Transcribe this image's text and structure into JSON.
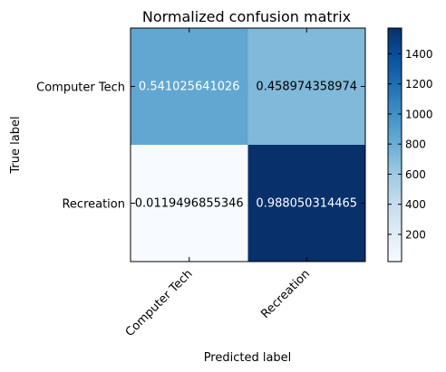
{
  "chart_data": {
    "type": "heatmap",
    "title": "Normalized confusion matrix",
    "xlabel": "Predicted label",
    "ylabel": "True label",
    "x_categories": [
      "Computer Tech",
      "Recreation"
    ],
    "y_categories": [
      "Computer Tech",
      "Recreation"
    ],
    "cell_labels": [
      [
        "0.541025641026",
        "0.458974358974"
      ],
      [
        "0.0119496855346",
        "0.988050314465"
      ]
    ],
    "color_values": [
      [
        844,
        716
      ],
      [
        19,
        1571
      ]
    ],
    "colorbar": {
      "min": 19,
      "max": 1571,
      "ticks": [
        200,
        400,
        600,
        800,
        1000,
        1200,
        1400
      ],
      "colormap": "Blues"
    },
    "grid": false
  }
}
